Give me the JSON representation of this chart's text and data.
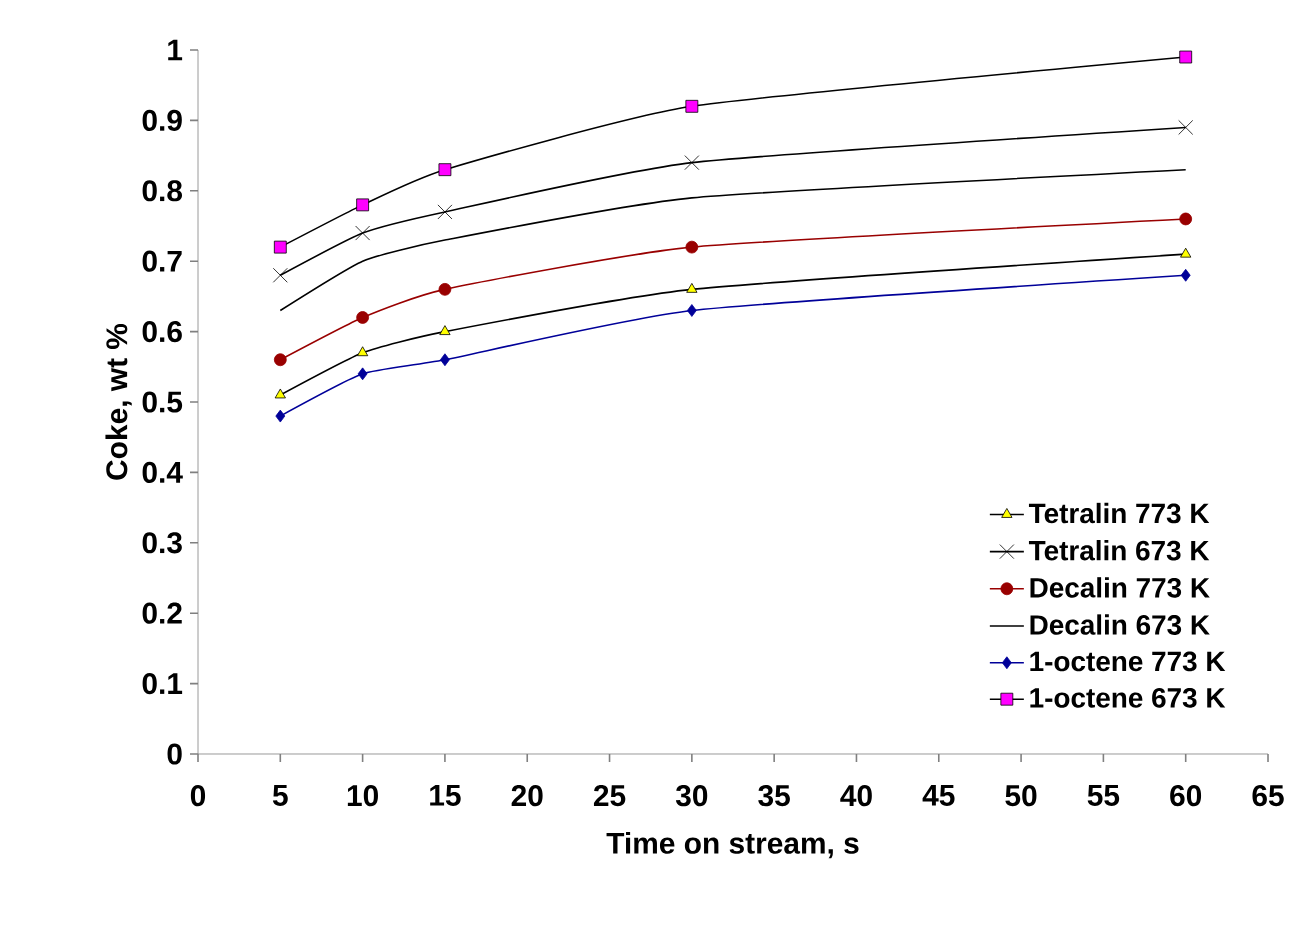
{
  "chart_data": {
    "type": "line",
    "xlabel": "Time on stream,  s",
    "ylabel": "Coke, wt %",
    "xlim": [
      0,
      65
    ],
    "xticks": [
      0,
      5,
      10,
      15,
      20,
      25,
      30,
      35,
      40,
      45,
      50,
      55,
      60,
      65
    ],
    "ylim": [
      0,
      1
    ],
    "yticks": [
      0,
      0.1,
      0.2,
      0.3,
      0.4,
      0.5,
      0.6,
      0.7,
      0.8,
      0.9,
      1
    ],
    "x": [
      5,
      10,
      15,
      30,
      60
    ],
    "grid": false,
    "legend": "bottom right",
    "series": [
      {
        "name": "Tetralin 773 K",
        "color": "#ffff00",
        "marker": "triangle",
        "values": [
          0.51,
          0.57,
          0.6,
          0.66,
          0.71
        ]
      },
      {
        "name": "Tetralin 673 K",
        "color": "#000000",
        "marker": "cross",
        "values": [
          0.68,
          0.74,
          0.77,
          0.84,
          0.89
        ]
      },
      {
        "name": "Decalin 773 K",
        "color": "#990000",
        "marker": "circle",
        "values": [
          0.56,
          0.62,
          0.66,
          0.72,
          0.76
        ]
      },
      {
        "name": "Decalin 673 K",
        "color": "#000000",
        "marker": "none",
        "values": [
          0.63,
          0.7,
          0.73,
          0.79,
          0.83
        ]
      },
      {
        "name": "1-octene 773 K",
        "color": "#000099",
        "marker": "diamond",
        "values": [
          0.48,
          0.54,
          0.56,
          0.63,
          0.68
        ]
      },
      {
        "name": "1-octene 673 K",
        "color": "#ff00ff",
        "marker": "square",
        "values": [
          0.72,
          0.78,
          0.83,
          0.92,
          0.99
        ]
      }
    ]
  }
}
